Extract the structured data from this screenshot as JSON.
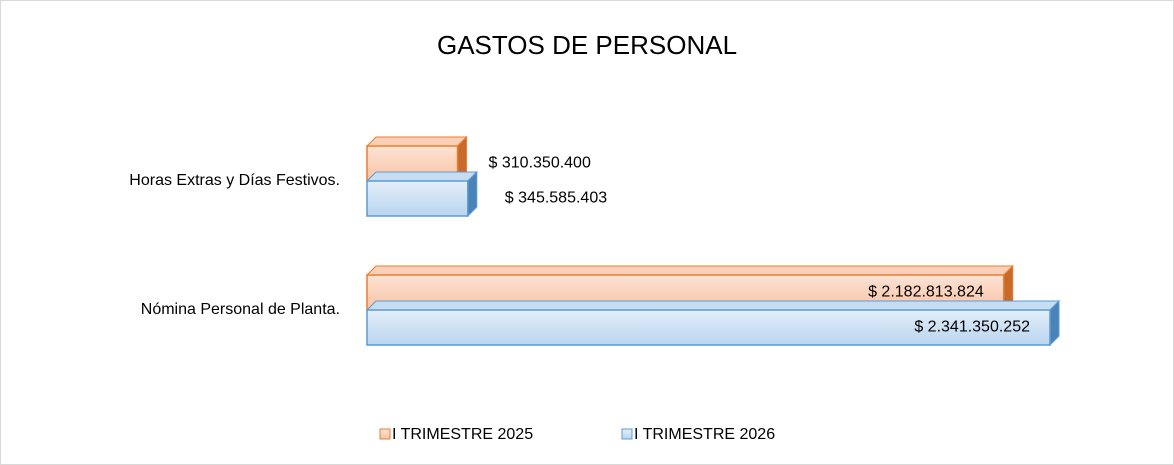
{
  "chart_data": {
    "type": "bar",
    "orientation": "horizontal",
    "title": "GASTOS DE PERSONAL",
    "categories": [
      "Horas Extras y Días Festivos.",
      "Nómina Personal de Planta."
    ],
    "series": [
      {
        "name": "I TRIMESTRE 2025",
        "color": "#ed7d31",
        "values": [
          310350400,
          2182813824
        ],
        "value_labels": [
          "$ 310.350.400",
          "$ 2.182.813.824"
        ]
      },
      {
        "name": "I TRIMESTRE 2026",
        "color": "#5b9bd5",
        "values": [
          345585403,
          2341350252
        ],
        "value_labels": [
          "$ 345.585.403",
          "$ 2.341.350.252"
        ]
      }
    ],
    "legend": "bottom"
  }
}
